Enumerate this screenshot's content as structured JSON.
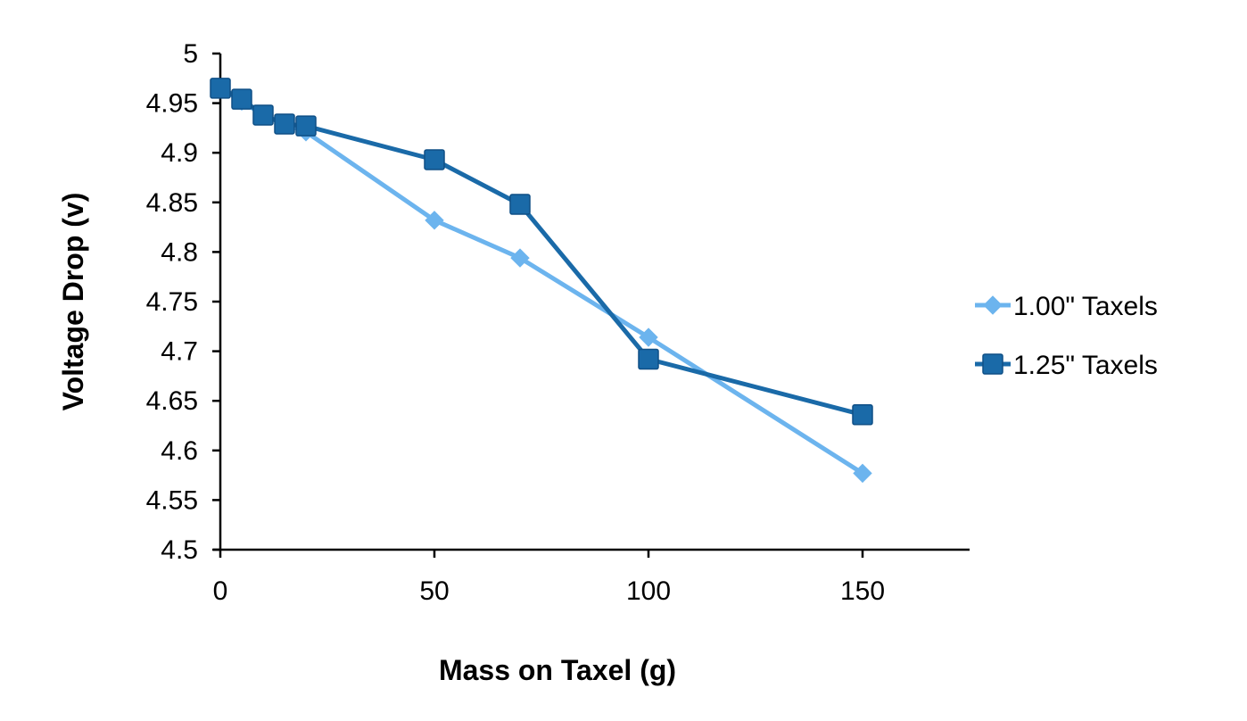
{
  "chart_data": {
    "type": "line",
    "title": "",
    "xlabel": "Mass on Taxel (g)",
    "ylabel": "Voltage Drop (v)",
    "xlim": [
      0,
      175
    ],
    "ylim": [
      4.5,
      5
    ],
    "x_ticks": [
      0,
      50,
      100,
      150
    ],
    "x_tick_labels": [
      "0",
      "50",
      "100",
      "150"
    ],
    "y_ticks": [
      4.5,
      4.55,
      4.6,
      4.65,
      4.7,
      4.75,
      4.8,
      4.85,
      4.9,
      4.95,
      5
    ],
    "y_tick_labels": [
      "4.5",
      "4.55",
      "4.6",
      "4.65",
      "4.7",
      "4.75",
      "4.8",
      "4.85",
      "4.9",
      "4.95",
      "5"
    ],
    "grid": false,
    "legend_position": "right",
    "series": [
      {
        "name": "1.00\" Taxels",
        "marker": "diamond",
        "color": "#6cb4ee",
        "x": [
          0,
          5,
          10,
          15,
          20,
          50,
          70,
          100,
          150
        ],
        "y": [
          4.965,
          4.952,
          4.938,
          4.929,
          4.921,
          4.832,
          4.794,
          4.714,
          4.577
        ]
      },
      {
        "name": "1.25\" Taxels",
        "marker": "square",
        "color": "#1a6aa8",
        "x": [
          0,
          5,
          10,
          15,
          20,
          50,
          70,
          100,
          150
        ],
        "y": [
          4.965,
          4.954,
          4.938,
          4.929,
          4.927,
          4.893,
          4.848,
          4.692,
          4.636
        ]
      }
    ]
  }
}
